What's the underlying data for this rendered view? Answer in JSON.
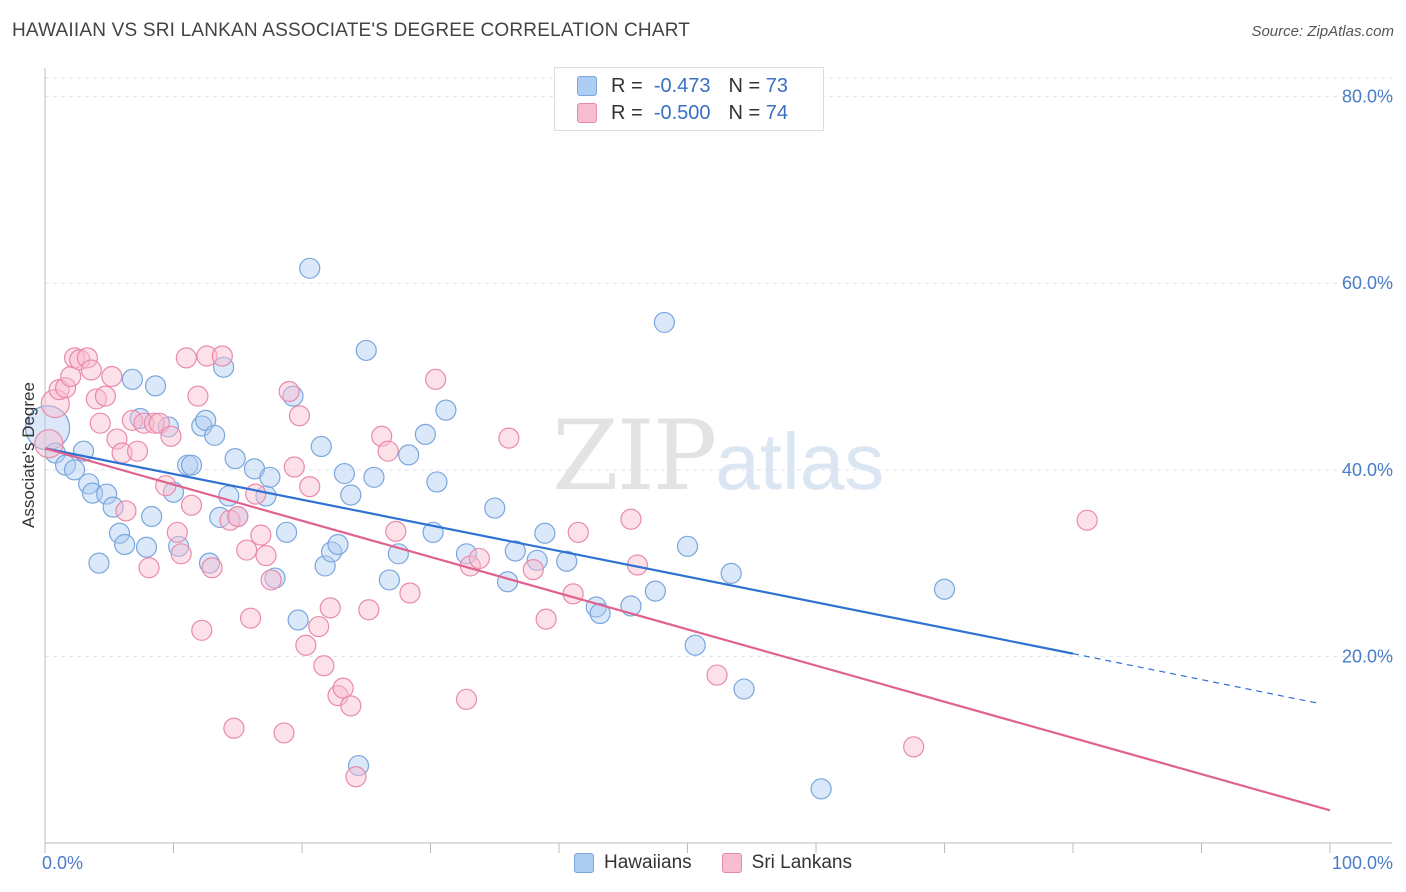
{
  "header": {
    "title": "HAWAIIAN VS SRI LANKAN ASSOCIATE'S DEGREE CORRELATION CHART",
    "source": "Source: ZipAtlas.com"
  },
  "watermark": {
    "zip": "ZIP",
    "atlas": "atlas"
  },
  "legend_top": {
    "rows": [
      {
        "r_label": "R =",
        "r_value": "-0.473",
        "n_label": "N =",
        "n_value": "73"
      },
      {
        "r_label": "R =",
        "r_value": "-0.500",
        "n_label": "N =",
        "n_value": "74"
      }
    ]
  },
  "legend_bottom": {
    "items": [
      {
        "label": "Hawaiians"
      },
      {
        "label": "Sri Lankans"
      }
    ]
  },
  "colors": {
    "hawaiians_fill": "#aecdf2",
    "hawaiians_stroke": "#7aa6dc",
    "hawaiians_line": "#2f72d0",
    "srilankans_fill": "#f8bccf",
    "srilankans_stroke": "#e98aab",
    "srilankans_line": "#e0628f"
  },
  "chart_data": {
    "type": "scatter",
    "title": "HAWAIIAN VS SRI LANKAN ASSOCIATE'S DEGREE CORRELATION CHART",
    "xlabel": "",
    "ylabel": "Associate's Degree",
    "xlim": [
      0,
      100
    ],
    "ylim": [
      0,
      82
    ],
    "x_tick_labels": [
      "0.0%",
      "100.0%"
    ],
    "y_ticks": [
      20,
      40,
      60,
      80
    ],
    "y_tick_labels": [
      "20.0%",
      "40.0%",
      "60.0%",
      "80.0%"
    ],
    "grid": true,
    "legend_position": "top-center",
    "series": [
      {
        "name": "Hawaiians",
        "r": -0.473,
        "n": 73,
        "trend": {
          "x0": 0,
          "y0": 42.3,
          "x1": 80,
          "y1": 20.3,
          "dashed_to_x": 99,
          "dashed_to_y": 15.0
        },
        "points": [
          [
            0.2,
            44.5
          ],
          [
            0.8,
            41.8
          ],
          [
            1.6,
            40.5
          ],
          [
            2.3,
            40.0
          ],
          [
            3.0,
            42.0
          ],
          [
            3.4,
            38.5
          ],
          [
            3.7,
            37.5
          ],
          [
            4.2,
            30.0
          ],
          [
            4.8,
            37.4
          ],
          [
            5.3,
            36.0
          ],
          [
            5.8,
            33.2
          ],
          [
            6.2,
            32.0
          ],
          [
            6.8,
            49.7
          ],
          [
            7.4,
            45.5
          ],
          [
            7.9,
            31.7
          ],
          [
            8.3,
            35.0
          ],
          [
            8.6,
            49.0
          ],
          [
            9.6,
            44.6
          ],
          [
            10.0,
            37.6
          ],
          [
            10.4,
            31.8
          ],
          [
            11.1,
            40.5
          ],
          [
            11.4,
            40.5
          ],
          [
            12.2,
            44.7
          ],
          [
            12.5,
            45.3
          ],
          [
            12.8,
            30.0
          ],
          [
            13.2,
            43.7
          ],
          [
            13.6,
            34.9
          ],
          [
            13.9,
            51.0
          ],
          [
            14.3,
            37.2
          ],
          [
            14.8,
            41.2
          ],
          [
            16.3,
            40.1
          ],
          [
            17.2,
            37.2
          ],
          [
            17.5,
            39.2
          ],
          [
            17.9,
            28.4
          ],
          [
            18.8,
            33.3
          ],
          [
            19.3,
            47.9
          ],
          [
            19.7,
            23.9
          ],
          [
            20.6,
            61.6
          ],
          [
            21.5,
            42.5
          ],
          [
            21.8,
            29.7
          ],
          [
            22.3,
            31.2
          ],
          [
            22.8,
            32.0
          ],
          [
            23.3,
            39.6
          ],
          [
            23.8,
            37.3
          ],
          [
            24.4,
            8.3
          ],
          [
            25.0,
            52.8
          ],
          [
            25.6,
            39.2
          ],
          [
            26.8,
            28.2
          ],
          [
            27.5,
            31.0
          ],
          [
            28.3,
            41.6
          ],
          [
            29.6,
            43.8
          ],
          [
            30.2,
            33.3
          ],
          [
            30.5,
            38.7
          ],
          [
            31.2,
            46.4
          ],
          [
            32.8,
            31.0
          ],
          [
            35.0,
            35.9
          ],
          [
            36.6,
            31.3
          ],
          [
            38.3,
            30.3
          ],
          [
            38.9,
            33.2
          ],
          [
            40.6,
            30.2
          ],
          [
            42.9,
            25.3
          ],
          [
            43.2,
            24.6
          ],
          [
            45.6,
            25.4
          ],
          [
            47.5,
            27.0
          ],
          [
            48.2,
            55.8
          ],
          [
            50.0,
            31.8
          ],
          [
            50.6,
            21.2
          ],
          [
            53.4,
            28.9
          ],
          [
            54.4,
            16.5
          ],
          [
            60.4,
            5.8
          ],
          [
            70.0,
            27.2
          ],
          [
            36.0,
            28.0
          ],
          [
            15.0,
            35.0
          ]
        ]
      },
      {
        "name": "Sri Lankans",
        "r": -0.5,
        "n": 74,
        "trend": {
          "x0": 0,
          "y0": 42.3,
          "x1": 100,
          "y1": 3.5
        },
        "points": [
          [
            0.3,
            42.8
          ],
          [
            0.8,
            47.1
          ],
          [
            1.1,
            48.6
          ],
          [
            1.6,
            48.8
          ],
          [
            2.0,
            50.0
          ],
          [
            2.3,
            52.0
          ],
          [
            2.7,
            51.8
          ],
          [
            3.3,
            52.0
          ],
          [
            3.6,
            50.7
          ],
          [
            4.0,
            47.6
          ],
          [
            4.3,
            45.0
          ],
          [
            4.7,
            47.9
          ],
          [
            5.2,
            50.0
          ],
          [
            5.6,
            43.3
          ],
          [
            6.0,
            41.8
          ],
          [
            6.3,
            35.6
          ],
          [
            6.8,
            45.3
          ],
          [
            7.2,
            42.0
          ],
          [
            7.7,
            45.0
          ],
          [
            8.1,
            29.5
          ],
          [
            8.5,
            45.0
          ],
          [
            8.9,
            45.0
          ],
          [
            9.4,
            38.3
          ],
          [
            9.8,
            43.6
          ],
          [
            10.3,
            33.3
          ],
          [
            10.6,
            31.0
          ],
          [
            11.0,
            52.0
          ],
          [
            11.4,
            36.2
          ],
          [
            11.9,
            47.9
          ],
          [
            12.2,
            22.8
          ],
          [
            12.6,
            52.2
          ],
          [
            13.0,
            29.5
          ],
          [
            13.8,
            52.2
          ],
          [
            14.4,
            34.6
          ],
          [
            14.7,
            12.3
          ],
          [
            15.0,
            35.0
          ],
          [
            15.7,
            31.4
          ],
          [
            16.0,
            24.1
          ],
          [
            16.4,
            37.4
          ],
          [
            16.8,
            33.0
          ],
          [
            17.2,
            30.8
          ],
          [
            17.6,
            28.2
          ],
          [
            18.6,
            11.8
          ],
          [
            19.0,
            48.4
          ],
          [
            19.4,
            40.3
          ],
          [
            19.8,
            45.8
          ],
          [
            20.3,
            21.2
          ],
          [
            20.6,
            38.2
          ],
          [
            21.3,
            23.2
          ],
          [
            21.7,
            19.0
          ],
          [
            22.2,
            25.2
          ],
          [
            22.8,
            15.8
          ],
          [
            23.2,
            16.6
          ],
          [
            23.8,
            14.7
          ],
          [
            24.2,
            7.1
          ],
          [
            25.2,
            25.0
          ],
          [
            26.2,
            43.6
          ],
          [
            26.7,
            42.0
          ],
          [
            27.3,
            33.4
          ],
          [
            28.4,
            26.8
          ],
          [
            30.4,
            49.7
          ],
          [
            32.8,
            15.4
          ],
          [
            33.1,
            29.7
          ],
          [
            33.8,
            30.5
          ],
          [
            36.1,
            43.4
          ],
          [
            38.0,
            29.3
          ],
          [
            39.0,
            24.0
          ],
          [
            41.1,
            26.7
          ],
          [
            41.5,
            33.3
          ],
          [
            45.6,
            34.7
          ],
          [
            46.1,
            29.8
          ],
          [
            52.3,
            18.0
          ],
          [
            67.6,
            10.3
          ],
          [
            81.1,
            34.6
          ]
        ]
      }
    ]
  }
}
